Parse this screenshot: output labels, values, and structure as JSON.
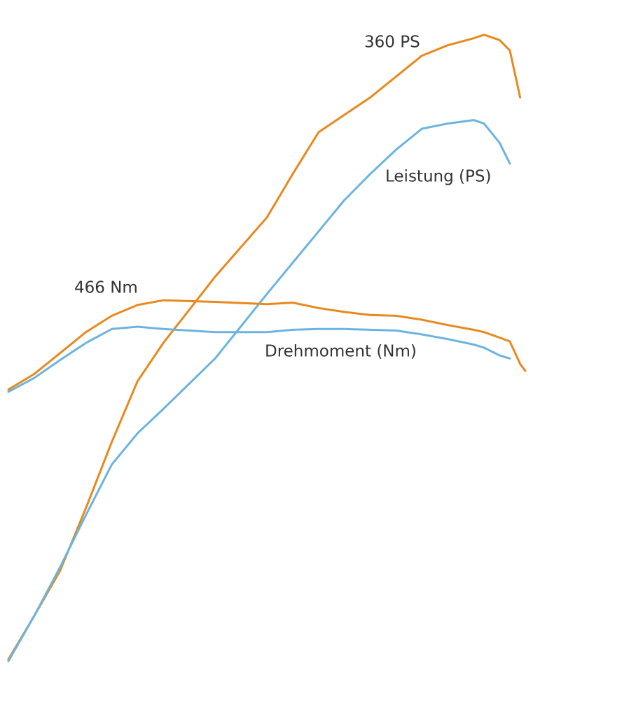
{
  "chart_data": {
    "type": "line",
    "x": [
      0,
      5,
      10,
      15,
      20,
      25,
      30,
      40,
      50,
      55,
      60,
      65,
      70,
      75,
      80,
      85,
      90,
      92,
      95,
      97,
      99,
      100
    ],
    "xlim": [
      0,
      100
    ],
    "ylim": [
      0,
      380
    ],
    "y2lim": [
      0,
      852
    ],
    "series": [
      {
        "color": "#e8891d",
        "values": [
          1,
          26,
          52,
          88,
          126,
          161,
          183,
          221,
          255,
          280,
          304,
          314,
          324,
          336,
          348,
          354,
          358,
          360,
          357,
          351,
          324,
          null
        ]
      },
      {
        "name": "Leistung (PS)",
        "color": "#6cb4e0",
        "values": [
          0,
          26,
          54,
          84,
          113,
          131,
          145,
          174,
          211,
          229,
          247,
          265,
          280,
          294,
          306,
          309,
          311,
          309,
          298,
          286,
          null,
          null
        ]
      },
      {
        "color": "#e8891d",
        "axis": "y2",
        "values": [
          350,
          370,
          397,
          424,
          445,
          459,
          465,
          463,
          460,
          462,
          455,
          450,
          446,
          445,
          440,
          433,
          427,
          424,
          417,
          412,
          383,
          374
        ]
      },
      {
        "name": "Drehmoment (Nm)",
        "color": "#6cb4e0",
        "axis": "y2",
        "values": [
          347,
          365,
          388,
          410,
          428,
          431,
          428,
          424,
          424,
          427,
          428,
          428,
          427,
          426,
          421,
          415,
          408,
          404,
          394,
          390,
          null,
          null
        ]
      }
    ],
    "annotations": [
      "360 PS",
      "466 Nm"
    ]
  }
}
